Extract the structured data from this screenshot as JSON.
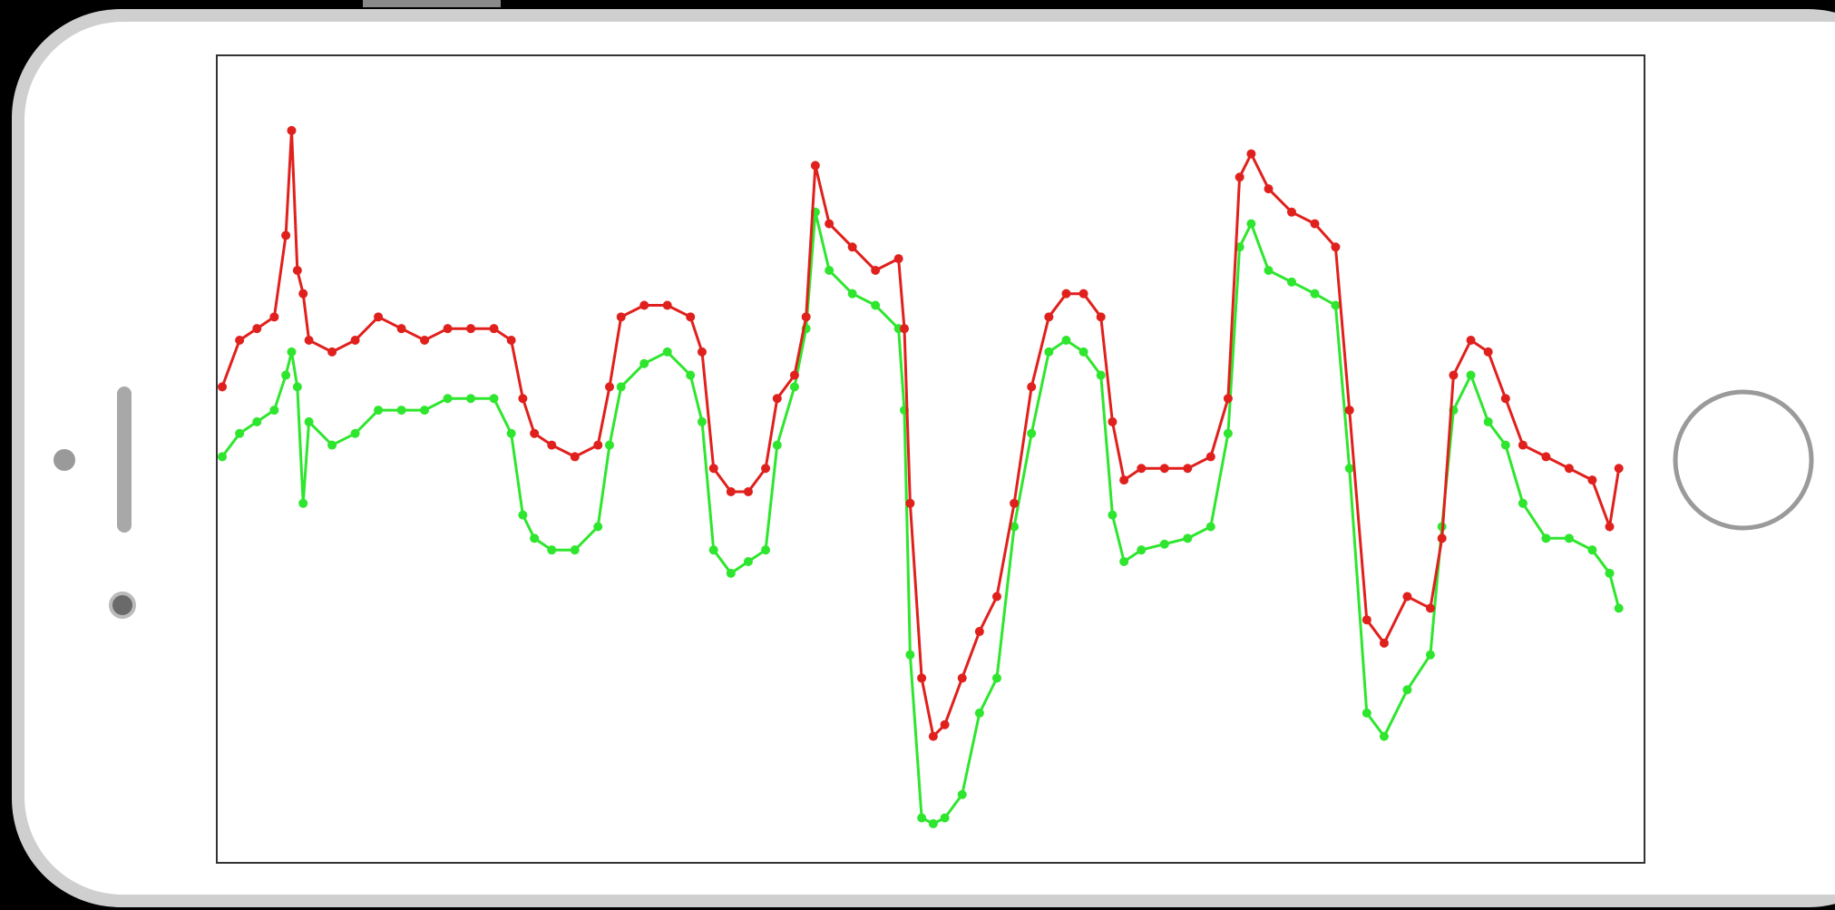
{
  "chart_data": {
    "type": "line",
    "x": [
      0,
      15,
      30,
      45,
      55,
      60,
      65,
      70,
      75,
      95,
      115,
      135,
      155,
      175,
      195,
      215,
      235,
      250,
      260,
      270,
      285,
      305,
      325,
      335,
      345,
      365,
      385,
      405,
      415,
      425,
      440,
      455,
      470,
      480,
      495,
      505,
      513,
      525,
      545,
      565,
      585,
      590,
      595,
      605,
      615,
      625,
      640,
      655,
      670,
      685,
      700,
      715,
      730,
      745,
      760,
      770,
      780,
      795,
      815,
      835,
      855,
      870,
      880,
      890,
      905,
      925,
      945,
      963,
      975,
      990,
      1005,
      1025,
      1045,
      1055,
      1065,
      1080,
      1095,
      1110,
      1125,
      1145,
      1165,
      1185,
      1200,
      1208
    ],
    "xlim": [
      0,
      1220
    ],
    "ylim": [
      0,
      690
    ],
    "series": [
      {
        "color": "#e0201c",
        "values": [
          407,
          447,
          457,
          467,
          537,
          627,
          507,
          487,
          447,
          437,
          447,
          467,
          457,
          447,
          457,
          457,
          457,
          447,
          397,
          367,
          357,
          347,
          357,
          407,
          467,
          477,
          477,
          467,
          437,
          337,
          317,
          317,
          337,
          397,
          417,
          467,
          597,
          547,
          527,
          507,
          517,
          457,
          307,
          157,
          107,
          117,
          157,
          197,
          227,
          307,
          407,
          467,
          487,
          487,
          467,
          377,
          327,
          337,
          337,
          337,
          347,
          397,
          587,
          607,
          577,
          557,
          547,
          527,
          387,
          207,
          187,
          227,
          217,
          277,
          417,
          447,
          437,
          397,
          357,
          347,
          337,
          327,
          287,
          337
        ]
      },
      {
        "color": "#2ee62e",
        "values": [
          347,
          367,
          377,
          387,
          417,
          437,
          407,
          307,
          377,
          357,
          367,
          387,
          387,
          387,
          397,
          397,
          397,
          367,
          297,
          277,
          267,
          267,
          287,
          357,
          407,
          427,
          437,
          417,
          377,
          267,
          247,
          257,
          267,
          357,
          407,
          457,
          557,
          507,
          487,
          477,
          457,
          387,
          177,
          37,
          32,
          37,
          57,
          127,
          157,
          287,
          367,
          437,
          447,
          437,
          417,
          297,
          257,
          267,
          272,
          277,
          287,
          367,
          527,
          547,
          507,
          497,
          487,
          477,
          337,
          127,
          107,
          147,
          177,
          287,
          387,
          417,
          377,
          357,
          307,
          277,
          277,
          267,
          247,
          217
        ]
      }
    ]
  }
}
